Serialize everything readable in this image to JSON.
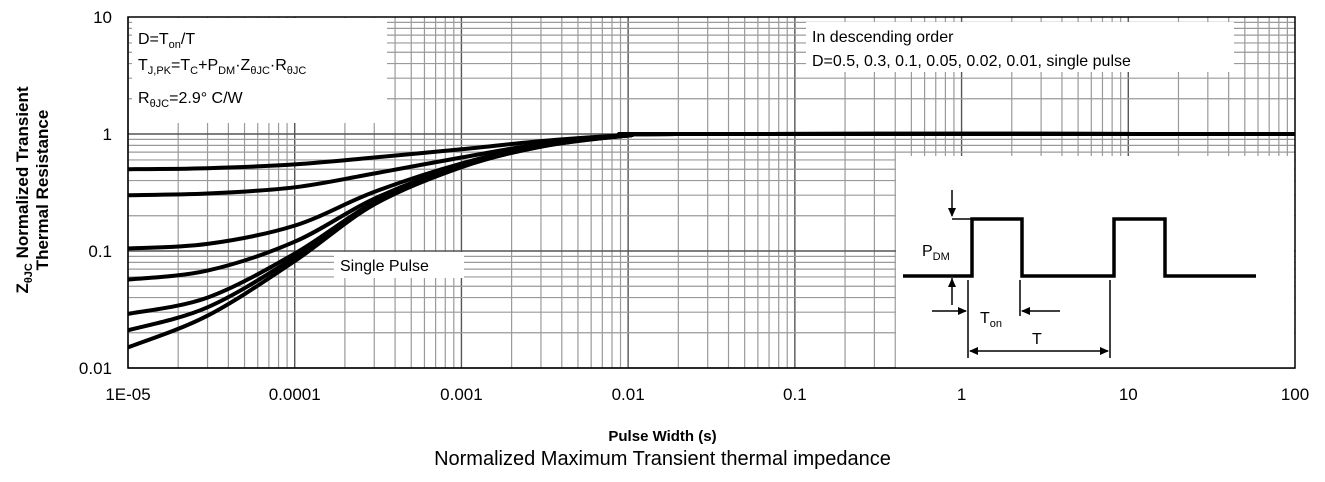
{
  "chart_data": {
    "type": "line",
    "x_scale": "log",
    "y_scale": "log",
    "xlim": [
      1e-05,
      100
    ],
    "ylim": [
      0.01,
      10
    ],
    "grid": true,
    "x_tick_labels": [
      "1E-05",
      "0.0001",
      "0.001",
      "0.01",
      "0.1",
      "1",
      "10",
      "100"
    ],
    "y_tick_labels": [
      "0.01",
      "0.1",
      "1",
      "10"
    ],
    "xlabel": "Pulse Width (s)",
    "ylabel_line1": "Normalized Transient",
    "ylabel_line2": "Thermal Resistance",
    "caption": "Normalized Maximum Transient thermal impedance",
    "formula_box": {
      "line1": {
        "a": "D=T",
        "a_sub": "on",
        "b": "/T"
      },
      "line2": {
        "a": "T",
        "a_sub": "J,PK",
        "b": "=T",
        "b_sub": "C",
        "c": "+P",
        "c_sub": "DM",
        "d": "·Z",
        "d_sub": "θJC",
        "e": "·R",
        "e_sub": "θJC"
      },
      "line3": {
        "a": "R",
        "a_sub": "θJC",
        "b": "=2.9°  C/W"
      }
    },
    "order_note_line1": "In descending order",
    "order_note_line2": "D=0.5, 0.3, 0.1, 0.05, 0.02, 0.01, single pulse",
    "single_pulse_label": "Single Pulse",
    "inset": {
      "pdm": "P",
      "pdm_sub": "DM",
      "ton": "T",
      "ton_sub": "on",
      "period": "T"
    },
    "series": [
      {
        "x": [
          1e-05,
          3e-05,
          0.0001,
          0.0003,
          0.001,
          0.003,
          0.01,
          0.02,
          100
        ],
        "y": [
          0.5,
          0.51,
          0.55,
          0.63,
          0.74,
          0.87,
          0.98,
          1.0,
          1.0
        ]
      },
      {
        "x": [
          1e-05,
          3e-05,
          0.0001,
          0.0003,
          0.001,
          0.003,
          0.01,
          0.02,
          100
        ],
        "y": [
          0.3,
          0.31,
          0.35,
          0.46,
          0.63,
          0.82,
          0.97,
          1.0,
          1.0
        ]
      },
      {
        "x": [
          1e-05,
          3e-05,
          0.0001,
          0.0003,
          0.001,
          0.003,
          0.01,
          0.02,
          100
        ],
        "y": [
          0.105,
          0.115,
          0.165,
          0.32,
          0.56,
          0.8,
          0.97,
          1.0,
          1.0
        ]
      },
      {
        "x": [
          1e-05,
          3e-05,
          0.0001,
          0.0003,
          0.001,
          0.003,
          0.01,
          0.02,
          100
        ],
        "y": [
          0.057,
          0.068,
          0.12,
          0.28,
          0.54,
          0.79,
          0.97,
          1.0,
          1.0
        ]
      },
      {
        "x": [
          1e-05,
          3e-05,
          0.0001,
          0.0003,
          0.001,
          0.003,
          0.01,
          0.02,
          100
        ],
        "y": [
          0.029,
          0.04,
          0.095,
          0.26,
          0.53,
          0.79,
          0.97,
          1.0,
          1.0
        ]
      },
      {
        "x": [
          1e-05,
          3e-05,
          0.0001,
          0.0003,
          0.001,
          0.003,
          0.01,
          0.02,
          100
        ],
        "y": [
          0.021,
          0.033,
          0.088,
          0.255,
          0.525,
          0.78,
          0.97,
          1.0,
          1.0
        ]
      },
      {
        "x": [
          1e-05,
          3e-05,
          0.0001,
          0.0003,
          0.001,
          0.003,
          0.01,
          0.02,
          100
        ],
        "y": [
          0.015,
          0.028,
          0.082,
          0.25,
          0.52,
          0.78,
          0.97,
          1.0,
          1.0
        ]
      }
    ]
  }
}
